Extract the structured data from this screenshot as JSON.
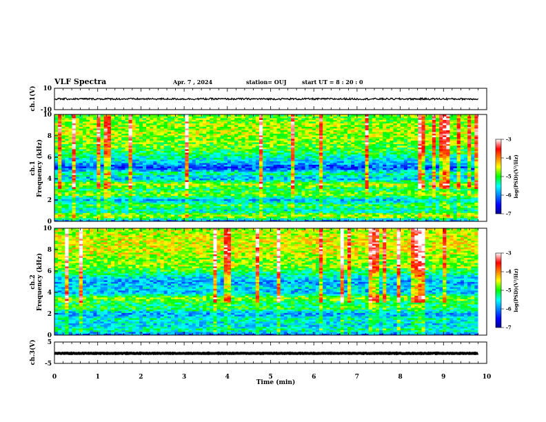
{
  "header": {
    "title": "VLF Spectra",
    "date": "Apr. 7 , 2024",
    "station": "station= OUJ",
    "start": "start UT =  8 : 20 : 0"
  },
  "chart_data": [
    {
      "type": "line",
      "panel": "waveform ch.1",
      "ylabel": "ch.1(V)",
      "ylim": [
        -10,
        10
      ],
      "ytick_labels": [
        "10",
        "-10"
      ],
      "x_range_min": [
        0,
        9.8
      ],
      "baseline_volts": 0
    },
    {
      "type": "heatmap",
      "panel": "spectrogram ch.1",
      "ylabel": "ch.1\nFrequency  (kHz)",
      "ylim": [
        0,
        10
      ],
      "ytick_labels": [
        "0",
        "2",
        "4",
        "6",
        "8",
        "10"
      ],
      "x_range_min": [
        0,
        9.8
      ],
      "colorbar": {
        "label": "log(PSD)(V²/Hz)",
        "range": [
          -7,
          -3
        ],
        "tick_labels": [
          "-3",
          "-4",
          "-5",
          "-6",
          "-7"
        ]
      },
      "intensity_band_kHz": [
        [
          0,
          -6.2
        ],
        [
          0.5,
          -4.5
        ],
        [
          1,
          -5.6
        ],
        [
          1.5,
          -5.0
        ],
        [
          2,
          -5.8
        ],
        [
          2.5,
          -4.8
        ],
        [
          3,
          -5.2
        ],
        [
          3.5,
          -4.6
        ],
        [
          4,
          -5.9
        ],
        [
          4.5,
          -5.2
        ],
        [
          5,
          -6.3
        ],
        [
          5.5,
          -5.8
        ],
        [
          6,
          -5.4
        ],
        [
          6.5,
          -5.1
        ],
        [
          7,
          -4.9
        ],
        [
          7.5,
          -4.8
        ],
        [
          8,
          -4.7
        ],
        [
          8.5,
          -4.6
        ],
        [
          9,
          -4.7
        ],
        [
          9.5,
          -4.8
        ],
        [
          10,
          -4.9
        ]
      ]
    },
    {
      "type": "heatmap",
      "panel": "spectrogram ch.2",
      "ylabel": "ch.2\nFrequency  (kHz)",
      "ylim": [
        0,
        10
      ],
      "ytick_labels": [
        "0",
        "2",
        "4",
        "6",
        "8",
        "10"
      ],
      "x_range_min": [
        0,
        9.8
      ],
      "colorbar": {
        "label": "log(PSD)(V²/Hz)",
        "range": [
          -7,
          -3
        ],
        "tick_labels": [
          "-3",
          "-4",
          "-5",
          "-6",
          "-7"
        ]
      },
      "intensity_band_kHz": [
        [
          0,
          -6.2
        ],
        [
          0.5,
          -5.3
        ],
        [
          1,
          -5.7
        ],
        [
          1.5,
          -5.4
        ],
        [
          2,
          -5.9
        ],
        [
          2.5,
          -5.1
        ],
        [
          3,
          -5.2
        ],
        [
          3.5,
          -4.7
        ],
        [
          4,
          -5.8
        ],
        [
          4.5,
          -5.6
        ],
        [
          5,
          -5.9
        ],
        [
          5.5,
          -5.5
        ],
        [
          6,
          -5.1
        ],
        [
          6.5,
          -4.7
        ],
        [
          7,
          -4.8
        ],
        [
          7.5,
          -4.6
        ],
        [
          8,
          -4.5
        ],
        [
          8.5,
          -4.5
        ],
        [
          9,
          -4.5
        ],
        [
          9.5,
          -4.6
        ],
        [
          10,
          -4.6
        ]
      ]
    },
    {
      "type": "line",
      "panel": "waveform ch.3",
      "ylabel": "ch.3(V)",
      "ylim": [
        -5,
        5
      ],
      "ytick_labels": [
        "5",
        "-5"
      ],
      "x_range_min": [
        0,
        9.8
      ],
      "baseline_volts": -0.3,
      "xlabel": "Time  (min)",
      "xlim": [
        0,
        10
      ],
      "xtick_labels": [
        "0",
        "1",
        "2",
        "3",
        "4",
        "5",
        "6",
        "7",
        "8",
        "9",
        "10"
      ]
    }
  ]
}
